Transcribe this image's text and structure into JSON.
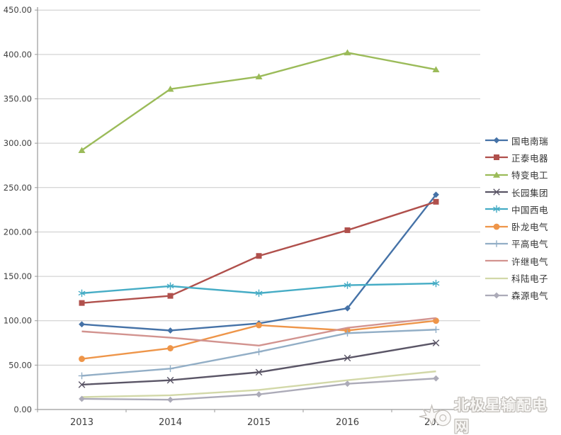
{
  "chart_data": {
    "type": "line",
    "title": "",
    "xlabel": "",
    "ylabel": "",
    "categories": [
      "2013",
      "2014",
      "2015",
      "2016",
      "2017"
    ],
    "series": [
      {
        "name": "国电南瑞",
        "color": "#4572A7",
        "marker": "diamond",
        "values": [
          96,
          89,
          97,
          114,
          242
        ]
      },
      {
        "name": "正泰电器",
        "color": "#B0504C",
        "marker": "square",
        "values": [
          120,
          128,
          173,
          202,
          234
        ]
      },
      {
        "name": "特变电工",
        "color": "#9BBB59",
        "marker": "triangle",
        "values": [
          292,
          361,
          375,
          402,
          383
        ]
      },
      {
        "name": "长园集团",
        "color": "#5A5566",
        "marker": "x",
        "values": [
          28,
          33,
          42,
          58,
          75
        ]
      },
      {
        "name": "中国西电",
        "color": "#45ACC5",
        "marker": "asterisk",
        "values": [
          131,
          139,
          131,
          140,
          142
        ]
      },
      {
        "name": "卧龙电气",
        "color": "#EE9549",
        "marker": "circle",
        "values": [
          57,
          69,
          95,
          89,
          100
        ]
      },
      {
        "name": "平高电气",
        "color": "#92AEC6",
        "marker": "plus",
        "values": [
          38,
          46,
          65,
          86,
          90
        ]
      },
      {
        "name": "许继电气",
        "color": "#D2938F",
        "marker": "none",
        "values": [
          88,
          81,
          72,
          92,
          103
        ]
      },
      {
        "name": "科陆电子",
        "color": "#D2D8A8",
        "marker": "none",
        "values": [
          14,
          16,
          22,
          33,
          43
        ]
      },
      {
        "name": "森源电气",
        "color": "#ACABB8",
        "marker": "diamond",
        "values": [
          12,
          11,
          17,
          29,
          35
        ]
      }
    ],
    "ylim": [
      0,
      450
    ],
    "y_tick_step": 50,
    "y_tick_labels": [
      "0.00",
      "50.00",
      "100.00",
      "150.00",
      "200.00",
      "250.00",
      "300.00",
      "350.00",
      "400.00",
      "450.00"
    ],
    "grid": true,
    "legend_position": "right"
  },
  "watermark": {
    "text": "北极星输配电网"
  },
  "style_colors": {
    "grid": "#C9C9C9",
    "axis": "#9A9A9A",
    "tick_label": "#3F3F3F",
    "background": "#FFFFFF"
  }
}
